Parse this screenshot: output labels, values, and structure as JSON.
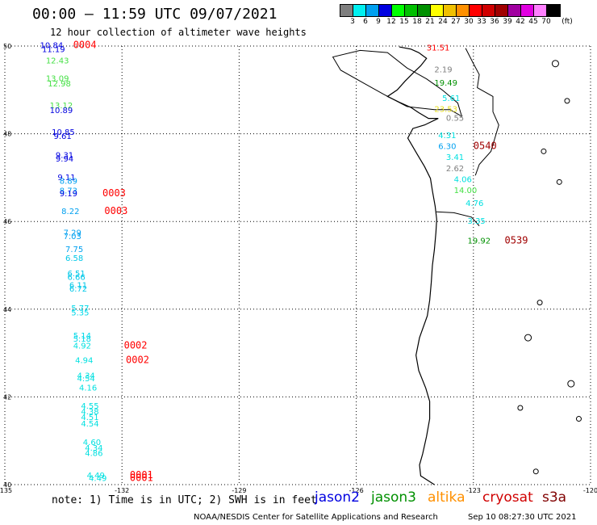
{
  "header": {
    "title": "00:00 — 11:59 UTC 09/07/2021",
    "subtitle": "12 hour collection of altimeter wave heights"
  },
  "legend": {
    "unit": "(ft)",
    "levels": [
      {
        "label": "3",
        "color": "#7f7f7f"
      },
      {
        "label": "6",
        "color": "#00f0f0"
      },
      {
        "label": "9",
        "color": "#00a0f0"
      },
      {
        "label": "12",
        "color": "#0000e0"
      },
      {
        "label": "15",
        "color": "#00ff00"
      },
      {
        "label": "18",
        "color": "#00c000"
      },
      {
        "label": "21",
        "color": "#009000"
      },
      {
        "label": "24",
        "color": "#ffff00"
      },
      {
        "label": "27",
        "color": "#f0c000"
      },
      {
        "label": "30",
        "color": "#ff9000"
      },
      {
        "label": "33",
        "color": "#ff0000"
      },
      {
        "label": "36",
        "color": "#d00000"
      },
      {
        "label": "39",
        "color": "#a00000"
      },
      {
        "label": "42",
        "color": "#a000a0"
      },
      {
        "label": "45",
        "color": "#e000e0"
      },
      {
        "label": "70",
        "color": "#ff80ff"
      },
      {
        "label": "",
        "color": "#000000"
      }
    ]
  },
  "map": {
    "lat_labels": [
      "50",
      "48",
      "46",
      "44",
      "42",
      "40"
    ],
    "lon_labels": [
      "-135",
      "-132",
      "-129",
      "-126",
      "-123",
      "-120"
    ]
  },
  "observations": [
    {
      "value": "10.84",
      "lat": 49.95,
      "lon": -134.1,
      "color": "#0000e0"
    },
    {
      "value": "11.19",
      "lat": 49.86,
      "lon": -134.05,
      "color": "#0000e0"
    },
    {
      "value": "12.43",
      "lat": 49.6,
      "lon": -133.95,
      "color": "#44e044"
    },
    {
      "value": "13.09",
      "lat": 49.2,
      "lon": -133.95,
      "color": "#44e044"
    },
    {
      "value": "12.98",
      "lat": 49.08,
      "lon": -133.9,
      "color": "#44e044"
    },
    {
      "value": "13.12",
      "lat": 48.58,
      "lon": -133.85,
      "color": "#44e044"
    },
    {
      "value": "10.89",
      "lat": 48.47,
      "lon": -133.85,
      "color": "#0000e0"
    },
    {
      "value": "10.85",
      "lat": 47.97,
      "lon": -133.8,
      "color": "#0000e0"
    },
    {
      "value": "9.61",
      "lat": 47.88,
      "lon": -133.75,
      "color": "#0000e0"
    },
    {
      "value": "9.31",
      "lat": 47.45,
      "lon": -133.7,
      "color": "#0000e0"
    },
    {
      "value": "9.94",
      "lat": 47.37,
      "lon": -133.7,
      "color": "#0000e0"
    },
    {
      "value": "9.11",
      "lat": 46.94,
      "lon": -133.65,
      "color": "#0000e0"
    },
    {
      "value": "8.89",
      "lat": 46.86,
      "lon": -133.6,
      "color": "#00a0f0"
    },
    {
      "value": "8.73",
      "lat": 46.64,
      "lon": -133.6,
      "color": "#00a0f0"
    },
    {
      "value": "9.19",
      "lat": 46.57,
      "lon": -133.6,
      "color": "#0000e0"
    },
    {
      "value": "8.22",
      "lat": 46.17,
      "lon": -133.55,
      "color": "#00a0f0"
    },
    {
      "value": "7.29",
      "lat": 45.68,
      "lon": -133.5,
      "color": "#00a0f0"
    },
    {
      "value": "7.03",
      "lat": 45.6,
      "lon": -133.5,
      "color": "#00a0f0"
    },
    {
      "value": "7.75",
      "lat": 45.3,
      "lon": -133.45,
      "color": "#00a0f0"
    },
    {
      "value": "6.58",
      "lat": 45.1,
      "lon": -133.45,
      "color": "#00c8e8"
    },
    {
      "value": "6.51",
      "lat": 44.75,
      "lon": -133.4,
      "color": "#00c8e8"
    },
    {
      "value": "6.66",
      "lat": 44.67,
      "lon": -133.4,
      "color": "#00c8e8"
    },
    {
      "value": "6.11",
      "lat": 44.48,
      "lon": -133.35,
      "color": "#00c8e8"
    },
    {
      "value": "6.72",
      "lat": 44.4,
      "lon": -133.35,
      "color": "#00c8e8"
    },
    {
      "value": "5.77",
      "lat": 43.96,
      "lon": -133.3,
      "color": "#00d8e8"
    },
    {
      "value": "5.35",
      "lat": 43.86,
      "lon": -133.3,
      "color": "#00d8e8"
    },
    {
      "value": "5.14",
      "lat": 43.33,
      "lon": -133.25,
      "color": "#00d8e8"
    },
    {
      "value": "5.18",
      "lat": 43.26,
      "lon": -133.25,
      "color": "#00d8e8"
    },
    {
      "value": "4.92",
      "lat": 43.1,
      "lon": -133.25,
      "color": "#00e0e0"
    },
    {
      "value": "4.94",
      "lat": 42.77,
      "lon": -133.2,
      "color": "#00e0e0"
    },
    {
      "value": "4.34",
      "lat": 42.42,
      "lon": -133.15,
      "color": "#00e0e0"
    },
    {
      "value": "4.54",
      "lat": 42.36,
      "lon": -133.15,
      "color": "#00e0e0"
    },
    {
      "value": "4.16",
      "lat": 42.15,
      "lon": -133.1,
      "color": "#00e0e0"
    },
    {
      "value": "4.55",
      "lat": 41.73,
      "lon": -133.05,
      "color": "#00e0e0"
    },
    {
      "value": "4.38",
      "lat": 41.6,
      "lon": -133.05,
      "color": "#00e0e0"
    },
    {
      "value": "4.51",
      "lat": 41.47,
      "lon": -133.05,
      "color": "#00e0e0"
    },
    {
      "value": "4.54",
      "lat": 41.33,
      "lon": -133.05,
      "color": "#00e0e0"
    },
    {
      "value": "4.60",
      "lat": 40.9,
      "lon": -133.0,
      "color": "#00e0e0"
    },
    {
      "value": "4.34",
      "lat": 40.77,
      "lon": -132.95,
      "color": "#00e0e0"
    },
    {
      "value": "4.86",
      "lat": 40.65,
      "lon": -132.95,
      "color": "#00e0e0"
    },
    {
      "value": "4.49",
      "lat": 40.15,
      "lon": -132.9,
      "color": "#00e0e0"
    },
    {
      "value": "4.49",
      "lat": 40.08,
      "lon": -132.85,
      "color": "#00e0e0"
    },
    {
      "value": "31.51",
      "lat": 49.9,
      "lon": -124.2,
      "color": "#ff0000"
    },
    {
      "value": "2.19",
      "lat": 49.4,
      "lon": -124.0,
      "color": "#7f7f7f"
    },
    {
      "value": "19.49",
      "lat": 49.1,
      "lon": -124.0,
      "color": "#009000"
    },
    {
      "value": "5.61",
      "lat": 48.75,
      "lon": -123.8,
      "color": "#00e0e0"
    },
    {
      "value": "23.53",
      "lat": 48.5,
      "lon": -124.0,
      "color": "#e8e020"
    },
    {
      "value": "0.55",
      "lat": 48.3,
      "lon": -123.7,
      "color": "#7f7f7f"
    },
    {
      "value": "4.31",
      "lat": 47.9,
      "lon": -123.9,
      "color": "#00e0e0"
    },
    {
      "value": "6.30",
      "lat": 47.65,
      "lon": -123.9,
      "color": "#00a0f0"
    },
    {
      "value": "3.41",
      "lat": 47.4,
      "lon": -123.7,
      "color": "#00e0e0"
    },
    {
      "value": "2.62",
      "lat": 47.15,
      "lon": -123.7,
      "color": "#7f7f7f"
    },
    {
      "value": "4.06",
      "lat": 46.9,
      "lon": -123.5,
      "color": "#00e0e0"
    },
    {
      "value": "14.00",
      "lat": 46.65,
      "lon": -123.5,
      "color": "#44e044"
    },
    {
      "value": "4.76",
      "lat": 46.35,
      "lon": -123.2,
      "color": "#00e0e0"
    },
    {
      "value": "3.35",
      "lat": 45.95,
      "lon": -123.15,
      "color": "#00e0e0"
    },
    {
      "value": "19.92",
      "lat": 45.5,
      "lon": -123.15,
      "color": "#009000"
    }
  ],
  "time_labels": [
    {
      "value": "0004",
      "lat": 49.95,
      "lon": -133.25,
      "color": "#ff0000"
    },
    {
      "value": "0003",
      "lat": 46.57,
      "lon": -132.5,
      "color": "#ff0000"
    },
    {
      "value": "0003",
      "lat": 46.17,
      "lon": -132.45,
      "color": "#ff0000"
    },
    {
      "value": "0002",
      "lat": 43.1,
      "lon": -131.95,
      "color": "#ff0000"
    },
    {
      "value": "0002",
      "lat": 42.77,
      "lon": -131.9,
      "color": "#ff0000"
    },
    {
      "value": "0001",
      "lat": 40.15,
      "lon": -131.8,
      "color": "#ff0000"
    },
    {
      "value": "0001",
      "lat": 40.08,
      "lon": -131.8,
      "color": "#ff0000"
    },
    {
      "value": "0540",
      "lat": 47.65,
      "lon": -123.0,
      "color": "#a00000"
    },
    {
      "value": "0539",
      "lat": 45.5,
      "lon": -122.2,
      "color": "#a00000"
    }
  ],
  "footer": {
    "note": "note: 1) Time is in UTC; 2) SWH is in feet",
    "missions": [
      {
        "label": "jason2",
        "color": "#0000e0"
      },
      {
        "label": "jason3",
        "color": "#009000"
      },
      {
        "label": "altika",
        "color": "#ff9000"
      },
      {
        "label": "cryosat",
        "color": "#d00000"
      },
      {
        "label": "s3a",
        "color": "#800000"
      }
    ],
    "credit": "NOAA/NESDIS Center for Satellite Applications and Research",
    "timestamp": "Sep 10 08:27:30 UTC 2021"
  }
}
